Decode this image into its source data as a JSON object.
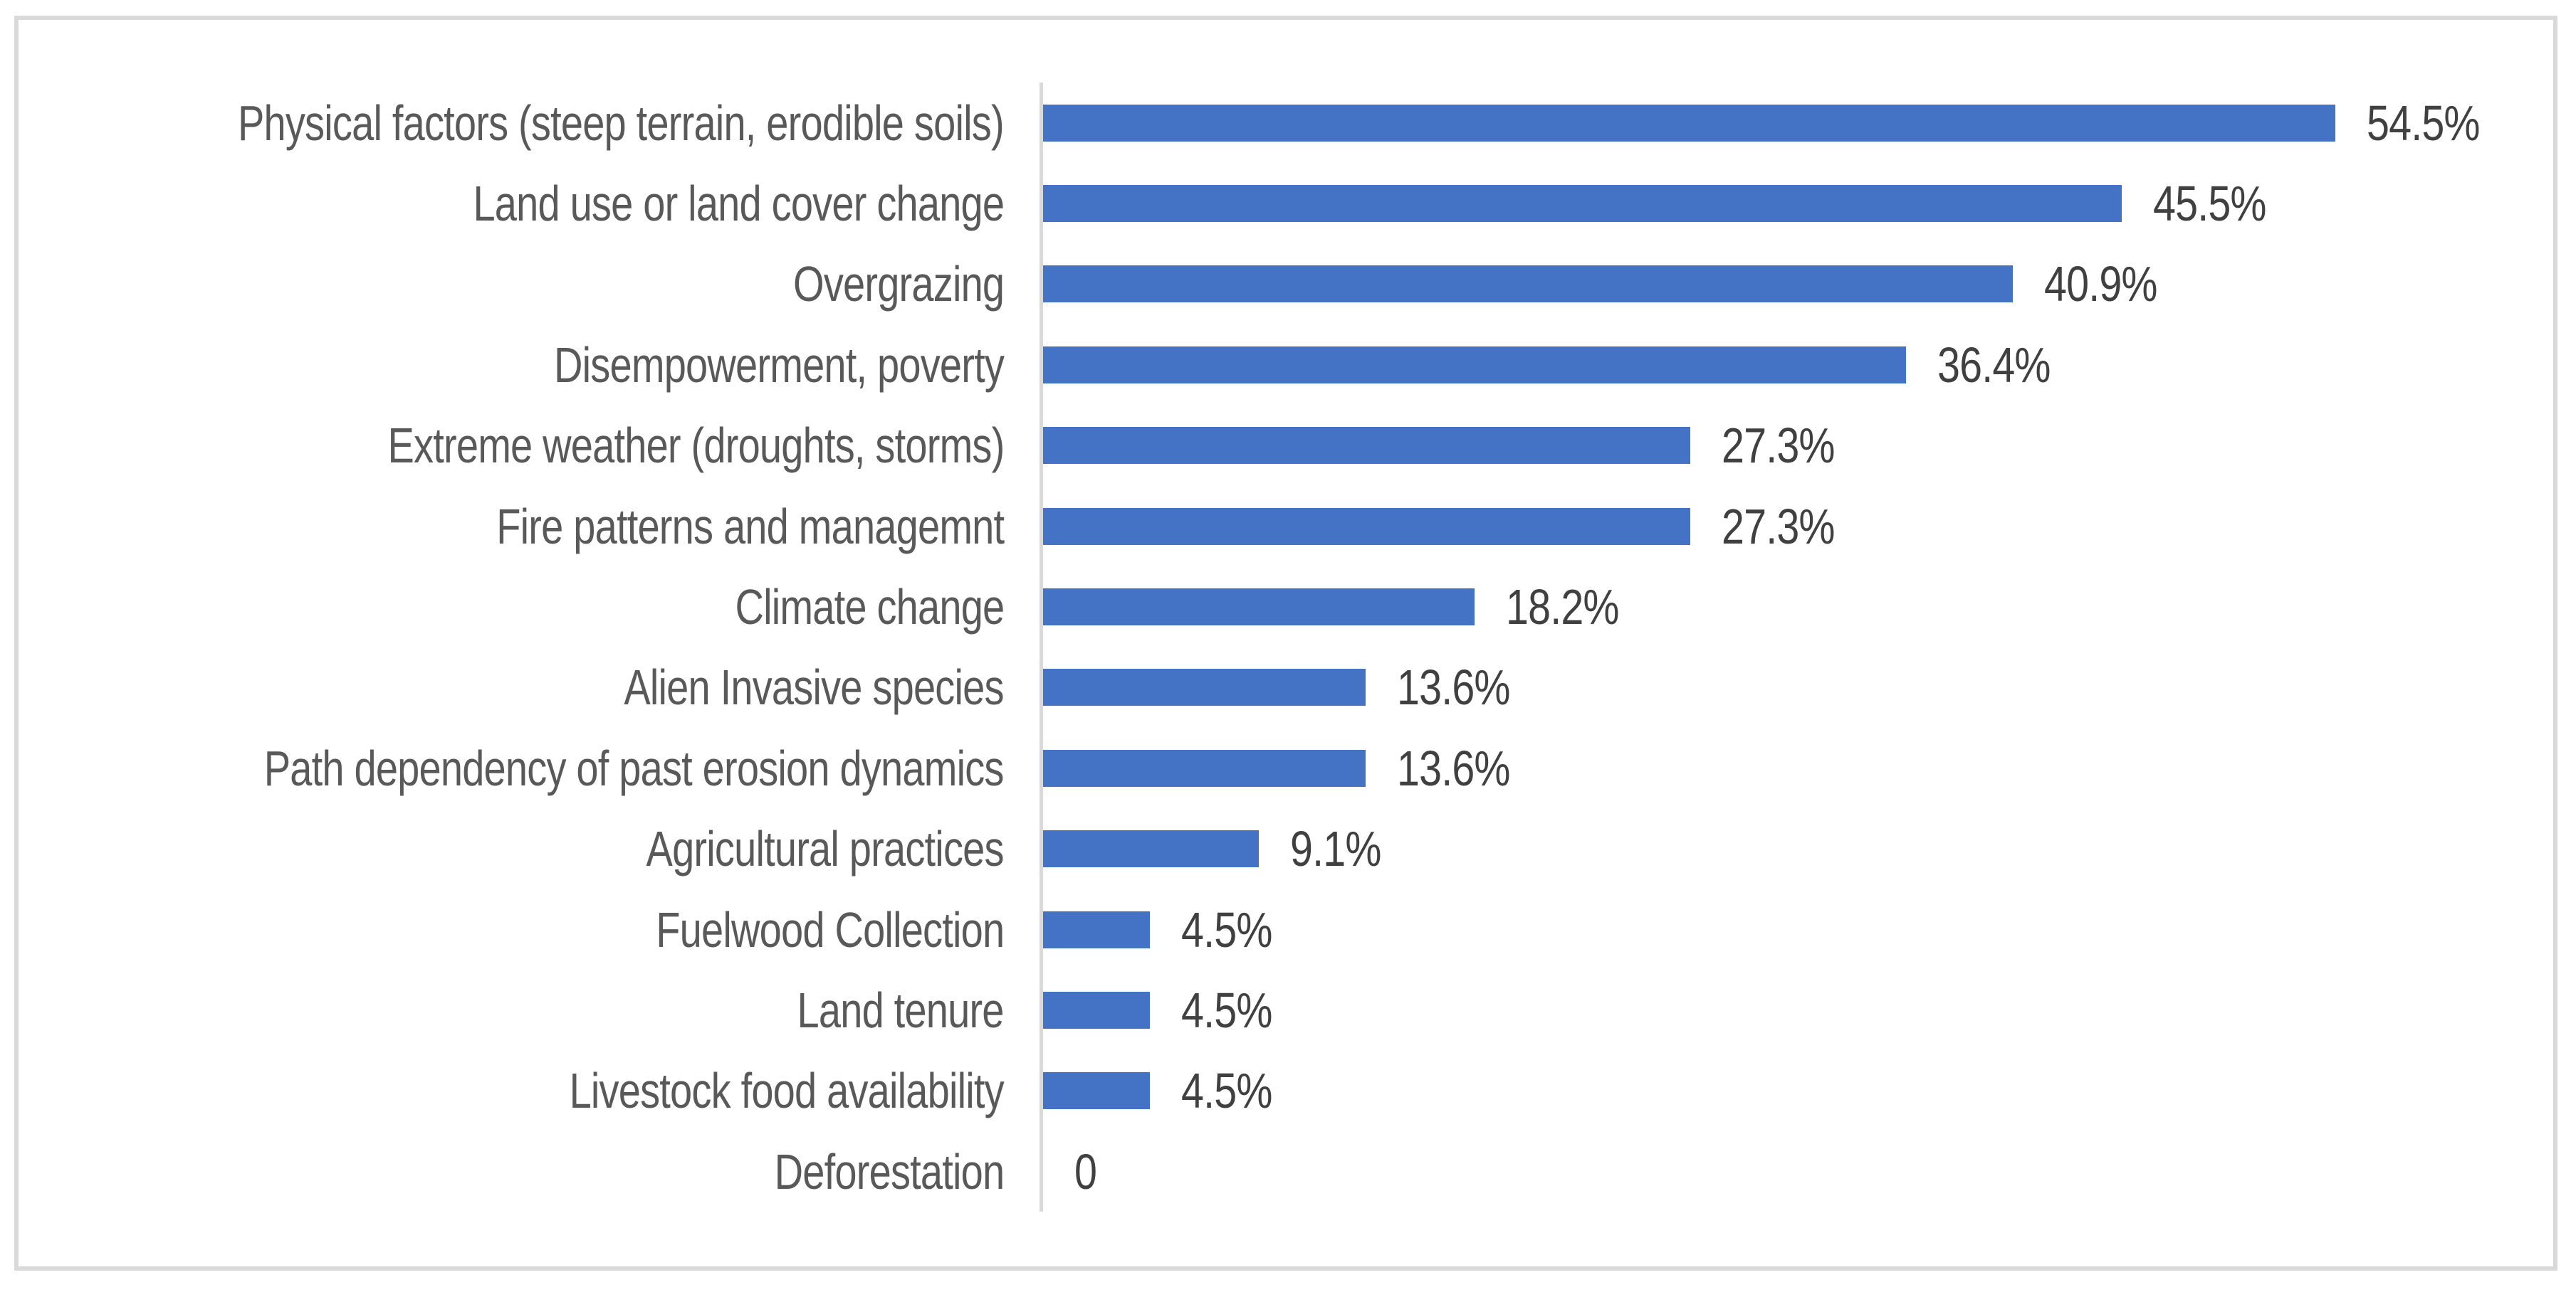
{
  "chart_data": {
    "type": "bar",
    "orientation": "horizontal",
    "title": "",
    "xlabel": "",
    "ylabel": "",
    "grid": false,
    "legend": false,
    "xlim": [
      0,
      62.4
    ],
    "bar_color": "#4472C4",
    "category_label_color": "#595959",
    "value_label_color": "#404040",
    "axis_line_color": "#D9D9D9",
    "frame_border_color": "#D9D9D9",
    "categories": [
      "Physical factors (steep terrain, erodible soils)",
      "Land use or land cover change",
      "Overgrazing",
      "Disempowerment, poverty",
      "Extreme weather (droughts, storms)",
      "Fire patterns and managemnt",
      "Climate change",
      "Alien Invasive species",
      "Path dependency of past erosion dynamics",
      "Agricultural practices",
      "Fuelwood Collection",
      "Land tenure",
      "Livestock food availability",
      "Deforestation"
    ],
    "values": [
      54.5,
      45.5,
      40.9,
      36.4,
      27.3,
      27.3,
      18.2,
      13.6,
      13.6,
      9.1,
      4.5,
      4.5,
      4.5,
      0
    ],
    "value_labels": [
      "54.5%",
      "45.5%",
      "40.9%",
      "36.4%",
      "27.3%",
      "27.3%",
      "18.2%",
      "13.6%",
      "13.6%",
      "9.1%",
      "4.5%",
      "4.5%",
      "4.5%",
      "0"
    ]
  }
}
